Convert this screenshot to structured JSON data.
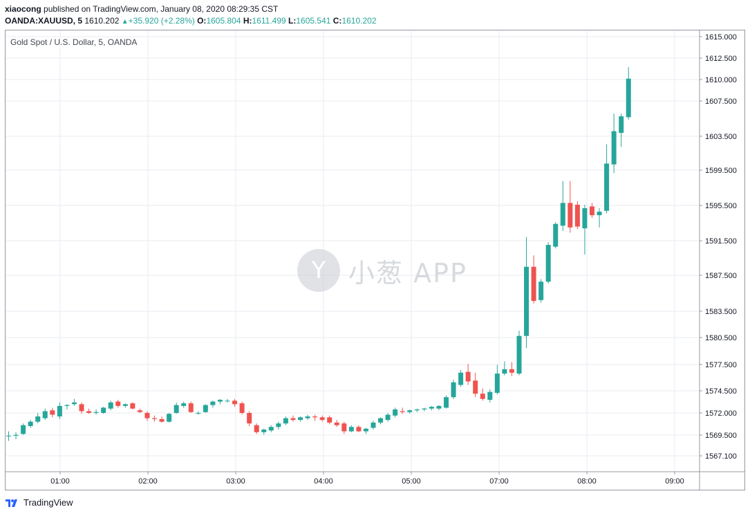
{
  "header": {
    "publisher": "xiaocong",
    "published_text": "published on TradingView.com, January 08, 2020 08:29:35 CST",
    "symbol": "OANDA:XAUUSD, 5",
    "last": "1610.202",
    "change": "+35.920 (+2.28%)",
    "o_label": "O:",
    "o_value": "1605.804",
    "h_label": "H:",
    "h_value": "1611.499",
    "l_label": "L:",
    "l_value": "1605.541",
    "c_label": "C:",
    "c_value": "1610.202"
  },
  "legend": "Gold Spot / U.S. Dollar, 5, OANDA",
  "watermark": "小葱 APP",
  "watermark_icon": "Y",
  "footer": {
    "brand": "TradingView"
  },
  "colors": {
    "up": "#26a69a",
    "down": "#ef5350",
    "grid": "#e8ebf0",
    "axis": "#9598a1"
  },
  "chart_data": {
    "type": "candlestick",
    "title": "Gold Spot / U.S. Dollar, 5, OANDA",
    "y_ticks": [
      "1615.000",
      "1612.500",
      "1610.000",
      "1607.500",
      "1603.500",
      "1599.500",
      "1595.500",
      "1591.500",
      "1587.500",
      "1583.500",
      "1580.500",
      "1577.500",
      "1574.500",
      "1572.000",
      "1569.500",
      "1567.100"
    ],
    "x_ticks": [
      "01:00",
      "02:00",
      "03:00",
      "04:00",
      "05:00",
      "07:00",
      "08:00",
      "09:00"
    ],
    "ylim": [
      1566,
      1616
    ],
    "grid": true,
    "candles": [
      {
        "o": 1569.4,
        "h": 1569.9,
        "l": 1568.8,
        "c": 1569.4
      },
      {
        "o": 1569.4,
        "h": 1569.8,
        "l": 1569.0,
        "c": 1569.5
      },
      {
        "o": 1569.6,
        "h": 1570.8,
        "l": 1569.5,
        "c": 1570.6
      },
      {
        "o": 1570.5,
        "h": 1571.2,
        "l": 1570.3,
        "c": 1571.0
      },
      {
        "o": 1571.0,
        "h": 1572.0,
        "l": 1570.8,
        "c": 1571.6
      },
      {
        "o": 1571.4,
        "h": 1572.5,
        "l": 1571.2,
        "c": 1572.2
      },
      {
        "o": 1572.3,
        "h": 1572.6,
        "l": 1571.5,
        "c": 1571.8
      },
      {
        "o": 1571.6,
        "h": 1573.2,
        "l": 1571.3,
        "c": 1572.8
      },
      {
        "o": 1572.8,
        "h": 1573.0,
        "l": 1572.4,
        "c": 1572.9
      },
      {
        "o": 1573.0,
        "h": 1573.6,
        "l": 1572.8,
        "c": 1573.2
      },
      {
        "o": 1573.0,
        "h": 1573.2,
        "l": 1571.9,
        "c": 1572.2
      },
      {
        "o": 1572.2,
        "h": 1572.5,
        "l": 1571.9,
        "c": 1572.0
      },
      {
        "o": 1572.0,
        "h": 1572.4,
        "l": 1571.8,
        "c": 1572.1
      },
      {
        "o": 1572.0,
        "h": 1572.7,
        "l": 1571.9,
        "c": 1572.6
      },
      {
        "o": 1572.5,
        "h": 1573.4,
        "l": 1572.3,
        "c": 1573.2
      },
      {
        "o": 1573.3,
        "h": 1573.5,
        "l": 1572.6,
        "c": 1572.8
      },
      {
        "o": 1572.8,
        "h": 1573.1,
        "l": 1572.6,
        "c": 1573.0
      },
      {
        "o": 1573.1,
        "h": 1573.2,
        "l": 1572.4,
        "c": 1572.5
      },
      {
        "o": 1572.3,
        "h": 1572.5,
        "l": 1572.0,
        "c": 1572.1
      },
      {
        "o": 1572.0,
        "h": 1572.2,
        "l": 1571.1,
        "c": 1571.4
      },
      {
        "o": 1571.4,
        "h": 1571.7,
        "l": 1571.0,
        "c": 1571.3
      },
      {
        "o": 1571.3,
        "h": 1571.6,
        "l": 1570.9,
        "c": 1571.0
      },
      {
        "o": 1571.0,
        "h": 1572.0,
        "l": 1570.9,
        "c": 1571.9
      },
      {
        "o": 1572.0,
        "h": 1573.2,
        "l": 1571.9,
        "c": 1572.9
      },
      {
        "o": 1572.8,
        "h": 1573.3,
        "l": 1572.6,
        "c": 1573.1
      },
      {
        "o": 1573.1,
        "h": 1573.3,
        "l": 1572.0,
        "c": 1572.1
      },
      {
        "o": 1572.0,
        "h": 1572.2,
        "l": 1571.8,
        "c": 1572.0
      },
      {
        "o": 1572.1,
        "h": 1573.0,
        "l": 1572.0,
        "c": 1572.9
      },
      {
        "o": 1572.9,
        "h": 1573.4,
        "l": 1572.6,
        "c": 1573.3
      },
      {
        "o": 1573.3,
        "h": 1573.6,
        "l": 1573.0,
        "c": 1573.5
      },
      {
        "o": 1573.4,
        "h": 1573.6,
        "l": 1573.2,
        "c": 1573.4
      },
      {
        "o": 1573.4,
        "h": 1573.6,
        "l": 1572.7,
        "c": 1573.0
      },
      {
        "o": 1573.1,
        "h": 1573.3,
        "l": 1571.8,
        "c": 1572.0
      },
      {
        "o": 1572.0,
        "h": 1572.2,
        "l": 1570.5,
        "c": 1570.8
      },
      {
        "o": 1570.6,
        "h": 1570.8,
        "l": 1569.6,
        "c": 1569.8
      },
      {
        "o": 1569.8,
        "h": 1570.2,
        "l": 1569.5,
        "c": 1570.1
      },
      {
        "o": 1570.0,
        "h": 1570.6,
        "l": 1569.8,
        "c": 1570.4
      },
      {
        "o": 1570.4,
        "h": 1571.0,
        "l": 1570.1,
        "c": 1570.8
      },
      {
        "o": 1570.8,
        "h": 1571.6,
        "l": 1570.6,
        "c": 1571.4
      },
      {
        "o": 1571.4,
        "h": 1571.7,
        "l": 1571.0,
        "c": 1571.2
      },
      {
        "o": 1571.2,
        "h": 1571.6,
        "l": 1571.0,
        "c": 1571.5
      },
      {
        "o": 1571.4,
        "h": 1571.8,
        "l": 1571.2,
        "c": 1571.6
      },
      {
        "o": 1571.6,
        "h": 1571.8,
        "l": 1571.1,
        "c": 1571.5
      },
      {
        "o": 1571.5,
        "h": 1571.7,
        "l": 1571.0,
        "c": 1571.2
      },
      {
        "o": 1571.5,
        "h": 1571.7,
        "l": 1570.7,
        "c": 1570.9
      },
      {
        "o": 1570.9,
        "h": 1571.2,
        "l": 1570.4,
        "c": 1570.6
      },
      {
        "o": 1570.8,
        "h": 1571.0,
        "l": 1569.6,
        "c": 1569.9
      },
      {
        "o": 1569.9,
        "h": 1570.6,
        "l": 1569.8,
        "c": 1570.4
      },
      {
        "o": 1570.4,
        "h": 1570.6,
        "l": 1569.8,
        "c": 1569.9
      },
      {
        "o": 1569.9,
        "h": 1570.3,
        "l": 1569.6,
        "c": 1570.2
      },
      {
        "o": 1570.3,
        "h": 1571.1,
        "l": 1570.1,
        "c": 1570.9
      },
      {
        "o": 1570.9,
        "h": 1571.5,
        "l": 1570.7,
        "c": 1571.4
      },
      {
        "o": 1571.2,
        "h": 1572.0,
        "l": 1571.0,
        "c": 1571.8
      },
      {
        "o": 1571.7,
        "h": 1572.6,
        "l": 1571.5,
        "c": 1572.4
      },
      {
        "o": 1572.2,
        "h": 1572.6,
        "l": 1571.9,
        "c": 1572.1
      },
      {
        "o": 1572.1,
        "h": 1572.4,
        "l": 1571.9,
        "c": 1572.3
      },
      {
        "o": 1572.3,
        "h": 1572.5,
        "l": 1572.1,
        "c": 1572.4
      },
      {
        "o": 1572.4,
        "h": 1572.6,
        "l": 1572.2,
        "c": 1572.5
      },
      {
        "o": 1572.5,
        "h": 1572.8,
        "l": 1572.3,
        "c": 1572.7
      },
      {
        "o": 1572.5,
        "h": 1572.9,
        "l": 1572.3,
        "c": 1572.8
      },
      {
        "o": 1572.6,
        "h": 1574.0,
        "l": 1572.5,
        "c": 1573.8
      },
      {
        "o": 1573.8,
        "h": 1575.8,
        "l": 1573.6,
        "c": 1575.5
      },
      {
        "o": 1575.2,
        "h": 1576.9,
        "l": 1575.0,
        "c": 1576.6
      },
      {
        "o": 1576.7,
        "h": 1577.6,
        "l": 1575.2,
        "c": 1575.6
      },
      {
        "o": 1575.7,
        "h": 1576.6,
        "l": 1573.8,
        "c": 1574.2
      },
      {
        "o": 1574.2,
        "h": 1574.8,
        "l": 1573.4,
        "c": 1573.6
      },
      {
        "o": 1573.5,
        "h": 1574.7,
        "l": 1573.2,
        "c": 1574.4
      },
      {
        "o": 1574.3,
        "h": 1577.5,
        "l": 1574.1,
        "c": 1576.5
      },
      {
        "o": 1576.5,
        "h": 1577.9,
        "l": 1576.3,
        "c": 1577.0
      },
      {
        "o": 1577.0,
        "h": 1577.8,
        "l": 1576.2,
        "c": 1576.6
      },
      {
        "o": 1576.5,
        "h": 1581.4,
        "l": 1576.3,
        "c": 1580.8
      },
      {
        "o": 1580.8,
        "h": 1592.1,
        "l": 1579.4,
        "c": 1588.7
      },
      {
        "o": 1588.7,
        "h": 1590.0,
        "l": 1584.5,
        "c": 1584.8
      },
      {
        "o": 1584.9,
        "h": 1587.3,
        "l": 1584.6,
        "c": 1587.0
      },
      {
        "o": 1587.0,
        "h": 1591.5,
        "l": 1586.8,
        "c": 1591.2
      },
      {
        "o": 1591.0,
        "h": 1593.8,
        "l": 1590.8,
        "c": 1593.6
      },
      {
        "o": 1593.4,
        "h": 1598.5,
        "l": 1592.8,
        "c": 1596.0
      },
      {
        "o": 1596.0,
        "h": 1598.5,
        "l": 1592.6,
        "c": 1593.2
      },
      {
        "o": 1595.8,
        "h": 1596.2,
        "l": 1593.0,
        "c": 1593.3
      },
      {
        "o": 1593.1,
        "h": 1595.8,
        "l": 1590.1,
        "c": 1595.4
      },
      {
        "o": 1595.6,
        "h": 1596.0,
        "l": 1594.3,
        "c": 1594.6
      },
      {
        "o": 1594.6,
        "h": 1595.4,
        "l": 1593.2,
        "c": 1595.0
      },
      {
        "o": 1595.1,
        "h": 1602.7,
        "l": 1594.8,
        "c": 1600.5
      },
      {
        "o": 1600.4,
        "h": 1606.2,
        "l": 1599.4,
        "c": 1604.2
      },
      {
        "o": 1604.0,
        "h": 1606.2,
        "l": 1602.4,
        "c": 1605.9
      },
      {
        "o": 1605.8,
        "h": 1611.5,
        "l": 1605.5,
        "c": 1610.2
      }
    ]
  }
}
